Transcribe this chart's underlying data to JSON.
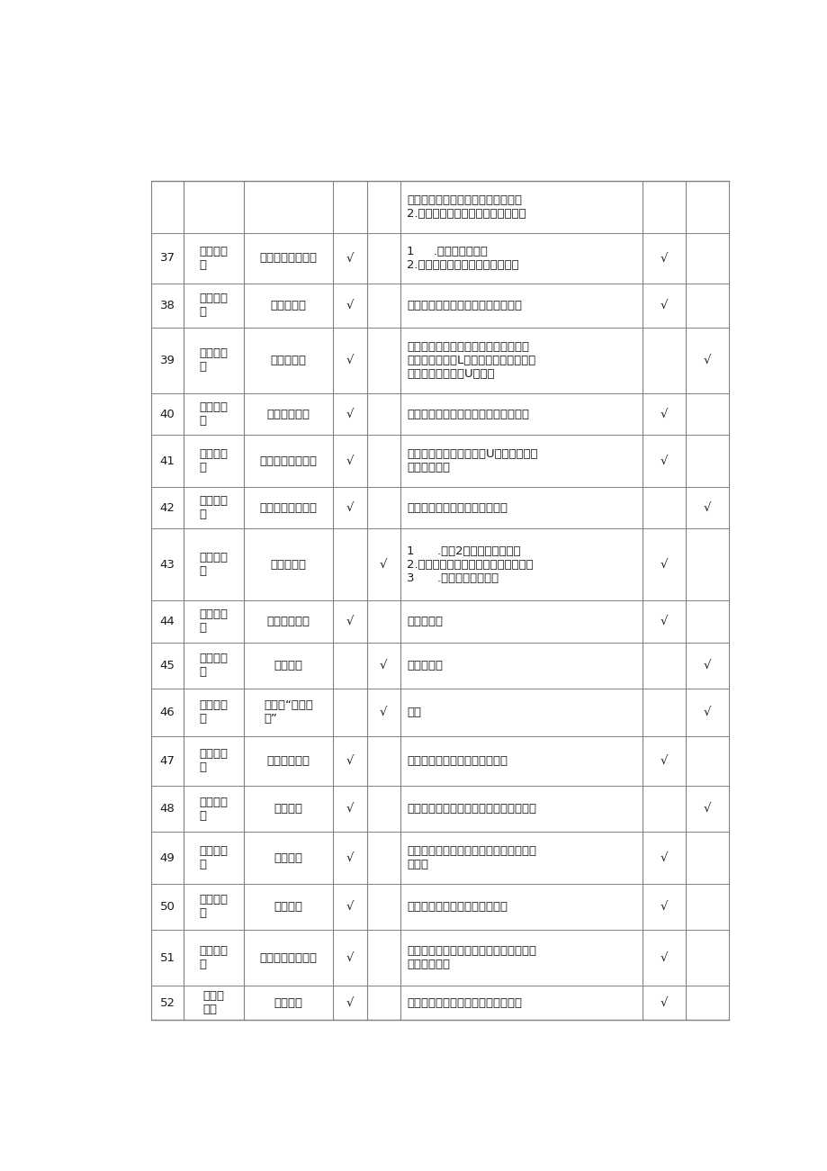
{
  "rows": [
    {
      "num": "",
      "grade": "",
      "lesson": "",
      "col4": "",
      "col5": "",
      "materials": "夾、橡皮筋、纸片、细沙、条形磁铁\n2.回形针、木屑、塑料杯、条形磁铁",
      "col7": "",
      "col8": ""
    },
    {
      "num": "37",
      "grade": "二年级下\n册",
      "lesson": "磁铁怎样吸引物体",
      "col4": "√",
      "col5": "",
      "materials": "1     .金属小车、棉线\n2.金属小车、材料卡片、条形磁铁",
      "col7": "√",
      "col8": ""
    },
    {
      "num": "38",
      "grade": "二年级下\n册",
      "lesson": "磁铁的两极",
      "col4": "√",
      "col5": "",
      "materials": "小钒珠、回形针、铁粉盒、条形磁铁",
      "col7": "√",
      "col8": ""
    },
    {
      "num": "39",
      "grade": "二年级下\n册",
      "lesson": "磁极与方向",
      "col4": "√",
      "col5": "",
      "materials": "指南针、顶针底座和顶针、磁铁旋转支\n架、塑料底板、L形支架、棉线、方位图\n卡、小条形磁铁、U形磁铁",
      "col7": "",
      "col8": "√"
    },
    {
      "num": "40",
      "grade": "二年级下\n册",
      "lesson": "做一个指南针",
      "col4": "√",
      "col5": "",
      "materials": "条形磁铁、吹塑纸、钒针、蓝色塑料盘",
      "col7": "√",
      "col8": ""
    },
    {
      "num": "41",
      "grade": "二年级下\n册",
      "lesson": "磁极间的相互作用",
      "col4": "√",
      "col5": "",
      "materials": "条形磁铁、小条形磁铁、U形磁铁、环形\n磁铁、小铁车",
      "col7": "√",
      "col8": ""
    },
    {
      "num": "42",
      "grade": "二年级下\n册",
      "lesson": "磁铁和我们的生活",
      "col4": "√",
      "col5": "",
      "materials": "圆形底座、塑料支管、环形磁铁",
      "col7": "",
      "col8": "√"
    },
    {
      "num": "43",
      "grade": "二年级下\n册",
      "lesson": "观察与比较",
      "col4": "",
      "col5": "√",
      "materials": "1      .活动2部分材料、塑料桶\n2.滴管、酿料盒、塑料杯、吸管、酿油\n3      .香蕉模型、真香蕉",
      "col7": "√",
      "col8": ""
    },
    {
      "num": "44",
      "grade": "二年级下\n册",
      "lesson": "测试反应快慢",
      "col4": "√",
      "col5": "",
      "materials": "反应速度尺",
      "col7": "√",
      "col8": ""
    },
    {
      "num": "45",
      "grade": "二年级下\n册",
      "lesson": "发现生长",
      "col4": "",
      "col5": "√",
      "materials": "身高测量尺",
      "col7": "",
      "col8": "√"
    },
    {
      "num": "46",
      "grade": "二年级下\n册",
      "lesson": "身体的“时间胶\n囊”",
      "col4": "",
      "col5": "√",
      "materials": "胶囊",
      "col7": "",
      "col8": "√"
    },
    {
      "num": "47",
      "grade": "三年级上\n册",
      "lesson": "水到哪里去了",
      "col4": "√",
      "col5": "",
      "materials": "透明塑料杯、塑料薄膜、橡皮筋",
      "col7": "√",
      "col8": ""
    },
    {
      "num": "48",
      "grade": "三年级上\n册",
      "lesson": "水永腾了",
      "col4": "√",
      "col5": "",
      "materials": "铁架台、烧杯、酒精灯、温度计、石棉网",
      "col7": "",
      "col8": "√"
    },
    {
      "num": "49",
      "grade": "三年级上\n册",
      "lesson": "水结冰了",
      "col4": "√",
      "col5": "",
      "materials": "透明塑料杯、试管、红液温度计、食盐、\n橡皮泥",
      "col7": "√",
      "col8": ""
    },
    {
      "num": "50",
      "grade": "三年级上\n册",
      "lesson": "冰融化了",
      "col4": "√",
      "col5": "",
      "materials": "透明塑料杯、试管、红液温度计",
      "col7": "√",
      "col8": ""
    },
    {
      "num": "51",
      "grade": "三年级上\n册",
      "lesson": "水能溶解多少物质",
      "col4": "√",
      "col5": "",
      "materials": "透明塑料杯、塑料定量勺、塑料搔拌棒、\n小苏打、食盐",
      "col7": "√",
      "col8": ""
    },
    {
      "num": "52",
      "grade": "三年级\n上册",
      "lesson": "加快溶解",
      "col4": "√",
      "col5": "",
      "materials": "透明塑料杯、塑料定量勺、塑料搔拌",
      "col7": "√",
      "col8": ""
    }
  ],
  "border_color": "#808080",
  "text_color": "#1a1a1a",
  "bg_color": "#ffffff",
  "font_size": 9.5
}
